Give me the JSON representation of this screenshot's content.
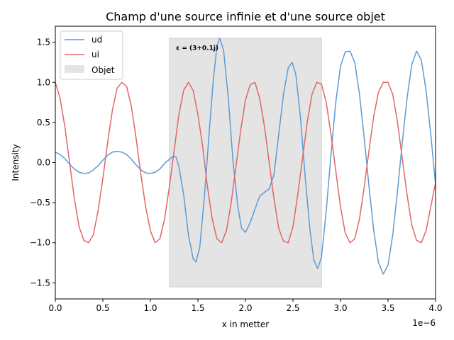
{
  "chart_data": {
    "type": "line",
    "title": "Champ d'une source infinie et d'une source objet",
    "xlabel": "x in metter",
    "ylabel": "Intensity",
    "x_scale_label": "1e−6",
    "xlim": [
      0,
      4.0
    ],
    "ylim": [
      -1.7,
      1.7
    ],
    "xticks": [
      0,
      0.5,
      1.0,
      1.5,
      2.0,
      2.5,
      3.0,
      3.5,
      4.0
    ],
    "xtick_labels": [
      "0.0",
      "0.5",
      "1.0",
      "1.5",
      "2.0",
      "2.5",
      "3.0",
      "3.5",
      "4.0"
    ],
    "yticks": [
      -1.5,
      -1.0,
      -0.5,
      0.0,
      0.5,
      1.0,
      1.5
    ],
    "ytick_labels": [
      "−1.5",
      "−1.0",
      "−0.5",
      "0.0",
      "0.5",
      "1.0",
      "1.5"
    ],
    "grid": false,
    "legend_position": "top-left",
    "object_region": {
      "label": "Objet",
      "x_start": 1.2,
      "x_end": 2.8,
      "y_min": -1.55,
      "y_max": 1.55,
      "color": "#e4e4e4"
    },
    "annotation": {
      "text": "ε = (3+0.1j)",
      "x": 1.27,
      "y": 1.43
    },
    "series": [
      {
        "name": "ud",
        "color": "#5b9bd5",
        "points": [
          [
            0.0,
            0.13
          ],
          [
            0.05,
            0.1
          ],
          [
            0.1,
            0.05
          ],
          [
            0.15,
            -0.02
          ],
          [
            0.2,
            -0.08
          ],
          [
            0.25,
            -0.12
          ],
          [
            0.3,
            -0.135
          ],
          [
            0.35,
            -0.13
          ],
          [
            0.4,
            -0.09
          ],
          [
            0.45,
            -0.04
          ],
          [
            0.5,
            0.03
          ],
          [
            0.55,
            0.09
          ],
          [
            0.6,
            0.13
          ],
          [
            0.65,
            0.14
          ],
          [
            0.7,
            0.13
          ],
          [
            0.75,
            0.1
          ],
          [
            0.8,
            0.04
          ],
          [
            0.85,
            -0.03
          ],
          [
            0.9,
            -0.09
          ],
          [
            0.95,
            -0.13
          ],
          [
            1.0,
            -0.135
          ],
          [
            1.05,
            -0.12
          ],
          [
            1.1,
            -0.08
          ],
          [
            1.15,
            -0.01
          ],
          [
            1.2,
            0.04
          ],
          [
            1.24,
            0.08
          ],
          [
            1.27,
            0.07
          ],
          [
            1.3,
            -0.05
          ],
          [
            1.35,
            -0.4
          ],
          [
            1.4,
            -0.9
          ],
          [
            1.45,
            -1.2
          ],
          [
            1.48,
            -1.24
          ],
          [
            1.52,
            -1.05
          ],
          [
            1.57,
            -0.4
          ],
          [
            1.62,
            0.4
          ],
          [
            1.66,
            1.0
          ],
          [
            1.7,
            1.45
          ],
          [
            1.73,
            1.55
          ],
          [
            1.77,
            1.4
          ],
          [
            1.82,
            0.8
          ],
          [
            1.87,
            0.0
          ],
          [
            1.92,
            -0.55
          ],
          [
            1.96,
            -0.82
          ],
          [
            2.0,
            -0.87
          ],
          [
            2.05,
            -0.75
          ],
          [
            2.1,
            -0.58
          ],
          [
            2.15,
            -0.42
          ],
          [
            2.2,
            -0.37
          ],
          [
            2.25,
            -0.33
          ],
          [
            2.3,
            -0.15
          ],
          [
            2.35,
            0.35
          ],
          [
            2.4,
            0.85
          ],
          [
            2.45,
            1.18
          ],
          [
            2.49,
            1.25
          ],
          [
            2.53,
            1.1
          ],
          [
            2.58,
            0.55
          ],
          [
            2.63,
            -0.2
          ],
          [
            2.68,
            -0.85
          ],
          [
            2.72,
            -1.22
          ],
          [
            2.76,
            -1.32
          ],
          [
            2.8,
            -1.18
          ],
          [
            2.85,
            -0.6
          ],
          [
            2.9,
            0.1
          ],
          [
            2.95,
            0.75
          ],
          [
            3.0,
            1.2
          ],
          [
            3.05,
            1.38
          ],
          [
            3.1,
            1.39
          ],
          [
            3.15,
            1.25
          ],
          [
            3.2,
            0.85
          ],
          [
            3.25,
            0.3
          ],
          [
            3.3,
            -0.3
          ],
          [
            3.35,
            -0.85
          ],
          [
            3.4,
            -1.25
          ],
          [
            3.45,
            -1.39
          ],
          [
            3.5,
            -1.28
          ],
          [
            3.55,
            -0.9
          ],
          [
            3.6,
            -0.35
          ],
          [
            3.65,
            0.25
          ],
          [
            3.7,
            0.8
          ],
          [
            3.75,
            1.22
          ],
          [
            3.8,
            1.39
          ],
          [
            3.85,
            1.28
          ],
          [
            3.9,
            0.9
          ],
          [
            3.95,
            0.35
          ],
          [
            4.0,
            -0.28
          ]
        ]
      },
      {
        "name": "ui",
        "color": "#e06666",
        "points": [
          [
            0.0,
            1.0
          ],
          [
            0.05,
            0.8
          ],
          [
            0.1,
            0.45
          ],
          [
            0.15,
            0.0
          ],
          [
            0.2,
            -0.45
          ],
          [
            0.25,
            -0.8
          ],
          [
            0.3,
            -0.97
          ],
          [
            0.35,
            -1.0
          ],
          [
            0.4,
            -0.9
          ],
          [
            0.45,
            -0.6
          ],
          [
            0.5,
            -0.2
          ],
          [
            0.55,
            0.25
          ],
          [
            0.6,
            0.65
          ],
          [
            0.65,
            0.93
          ],
          [
            0.7,
            1.0
          ],
          [
            0.75,
            0.95
          ],
          [
            0.8,
            0.7
          ],
          [
            0.85,
            0.3
          ],
          [
            0.9,
            -0.15
          ],
          [
            0.95,
            -0.55
          ],
          [
            1.0,
            -0.85
          ],
          [
            1.05,
            -1.0
          ],
          [
            1.1,
            -0.95
          ],
          [
            1.15,
            -0.7
          ],
          [
            1.2,
            -0.3
          ],
          [
            1.25,
            0.15
          ],
          [
            1.3,
            0.6
          ],
          [
            1.35,
            0.9
          ],
          [
            1.4,
            1.0
          ],
          [
            1.45,
            0.9
          ],
          [
            1.5,
            0.6
          ],
          [
            1.55,
            0.2
          ],
          [
            1.6,
            -0.3
          ],
          [
            1.65,
            -0.7
          ],
          [
            1.7,
            -0.95
          ],
          [
            1.75,
            -1.0
          ],
          [
            1.8,
            -0.85
          ],
          [
            1.85,
            -0.5
          ],
          [
            1.9,
            -0.05
          ],
          [
            1.95,
            0.4
          ],
          [
            2.0,
            0.78
          ],
          [
            2.05,
            0.97
          ],
          [
            2.1,
            1.0
          ],
          [
            2.15,
            0.8
          ],
          [
            2.2,
            0.45
          ],
          [
            2.25,
            0.0
          ],
          [
            2.3,
            -0.45
          ],
          [
            2.35,
            -0.82
          ],
          [
            2.4,
            -0.98
          ],
          [
            2.45,
            -1.0
          ],
          [
            2.5,
            -0.8
          ],
          [
            2.55,
            -0.4
          ],
          [
            2.6,
            0.05
          ],
          [
            2.65,
            0.5
          ],
          [
            2.7,
            0.85
          ],
          [
            2.75,
            1.0
          ],
          [
            2.8,
            0.98
          ],
          [
            2.85,
            0.75
          ],
          [
            2.9,
            0.35
          ],
          [
            2.95,
            -0.1
          ],
          [
            3.0,
            -0.55
          ],
          [
            3.05,
            -0.88
          ],
          [
            3.1,
            -1.0
          ],
          [
            3.15,
            -0.95
          ],
          [
            3.2,
            -0.7
          ],
          [
            3.25,
            -0.3
          ],
          [
            3.3,
            0.15
          ],
          [
            3.35,
            0.58
          ],
          [
            3.4,
            0.88
          ],
          [
            3.45,
            1.0
          ],
          [
            3.5,
            1.0
          ],
          [
            3.55,
            0.85
          ],
          [
            3.6,
            0.5
          ],
          [
            3.65,
            0.05
          ],
          [
            3.7,
            -0.4
          ],
          [
            3.75,
            -0.78
          ],
          [
            3.8,
            -0.97
          ],
          [
            3.85,
            -1.0
          ],
          [
            3.9,
            -0.85
          ],
          [
            3.95,
            -0.55
          ],
          [
            4.0,
            -0.25
          ]
        ]
      }
    ]
  }
}
